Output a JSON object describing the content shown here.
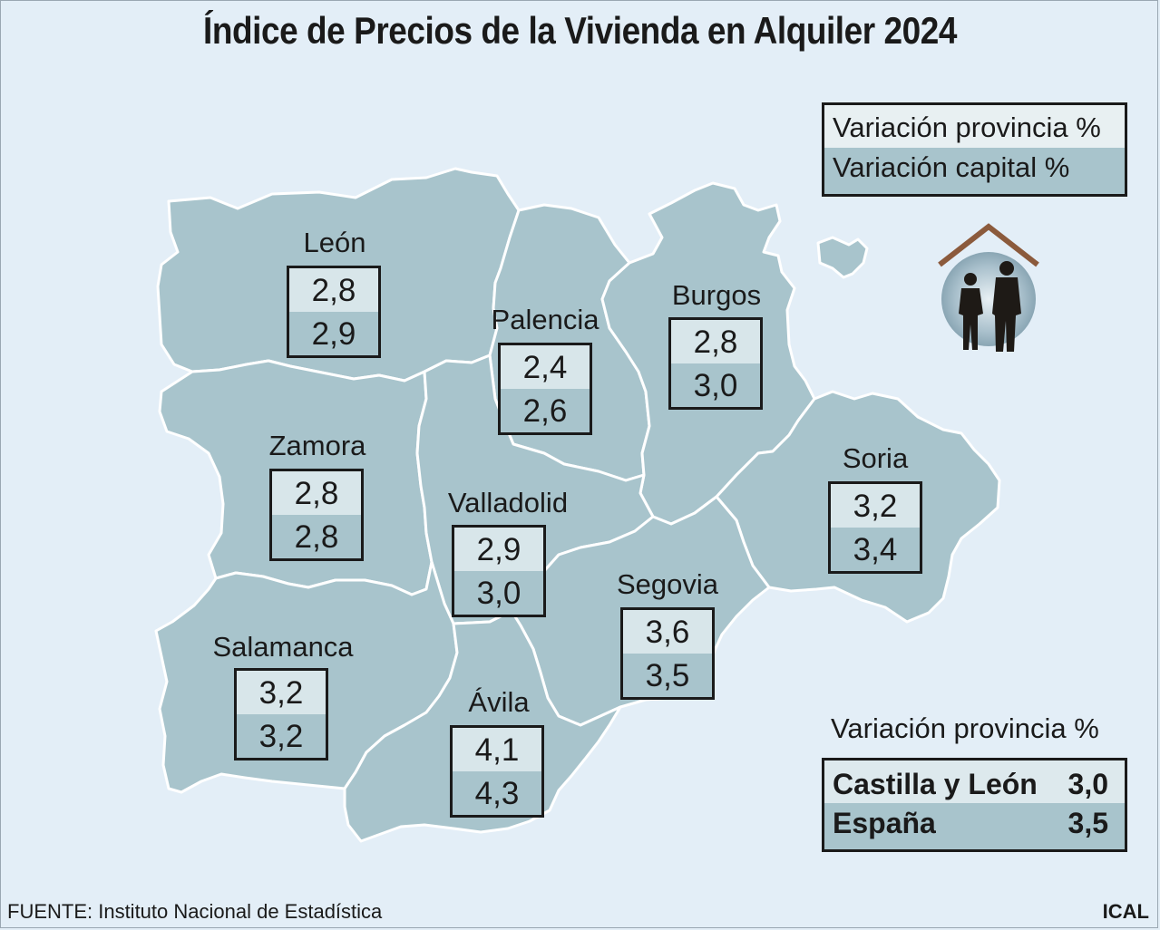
{
  "title": "Índice de Precios de la Vivienda en Alquiler 2024",
  "legend": {
    "provincia": "Variación provincia %",
    "capital": "Variación capital %"
  },
  "provinces": [
    {
      "name": "León",
      "provincia": "2,8",
      "capital": "2,9"
    },
    {
      "name": "Palencia",
      "provincia": "2,4",
      "capital": "2,6"
    },
    {
      "name": "Burgos",
      "provincia": "2,8",
      "capital": "3,0"
    },
    {
      "name": "Zamora",
      "provincia": "2,8",
      "capital": "2,8"
    },
    {
      "name": "Valladolid",
      "provincia": "2,9",
      "capital": "3,0"
    },
    {
      "name": "Soria",
      "provincia": "3,2",
      "capital": "3,4"
    },
    {
      "name": "Segovia",
      "provincia": "3,6",
      "capital": "3,5"
    },
    {
      "name": "Salamanca",
      "provincia": "3,2",
      "capital": "3,2"
    },
    {
      "name": "Ávila",
      "provincia": "4,1",
      "capital": "4,3"
    }
  ],
  "summary": {
    "title": "Variación provincia %",
    "rows": [
      {
        "label": "Castilla y León",
        "value": "3,0"
      },
      {
        "label": "España",
        "value": "3,5"
      }
    ]
  },
  "source": "FUENTE: Instituto Nacional de Estadística",
  "credit": "ICAL",
  "colors": {
    "background": "#e3eef7",
    "region_fill": "#a8c4cc",
    "region_stroke": "#ffffff",
    "box_top": "#d8e6ea",
    "text": "#1a1a1a",
    "roof": "#8b5a3c"
  },
  "icon": "family-home-icon"
}
